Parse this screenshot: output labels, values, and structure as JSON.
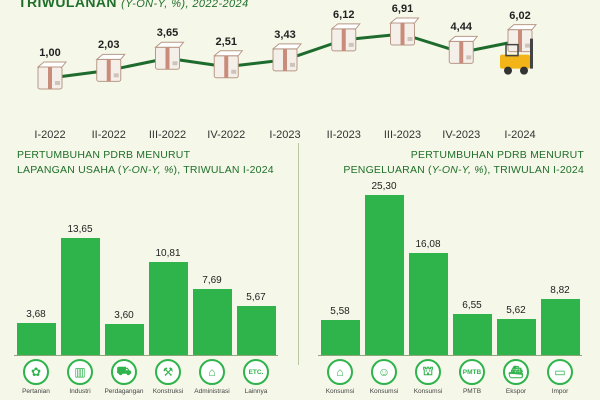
{
  "header": {
    "title_main": "TRIWULANAN",
    "title_sub": "(Y-ON-Y, %), 2022-2024"
  },
  "chart_data": [
    {
      "type": "line",
      "categories": [
        "I-2022",
        "II-2022",
        "III-2022",
        "IV-2022",
        "I-2023",
        "II-2023",
        "III-2023",
        "IV-2023",
        "I-2024"
      ],
      "values": [
        1.0,
        2.03,
        3.65,
        2.51,
        3.43,
        6.12,
        6.91,
        4.44,
        6.02
      ],
      "value_labels": [
        "1,00",
        "2,03",
        "3,65",
        "2,51",
        "3,43",
        "6,12",
        "6,91",
        "4,44",
        "6,02"
      ],
      "color": "#1e6b2e"
    },
    {
      "type": "bar",
      "title_line1": "PERTUMBUHAN PDRB MENURUT",
      "title_line2_pre": "LAPANGAN USAHA (",
      "title_line2_em": "Y-ON-Y, %",
      "title_line2_post": "), TRIWULAN I-2024",
      "categories": [
        "Pertanian",
        "Industri",
        "Perdagangan",
        "Konstruksi",
        "Administrasi",
        "Lainnya"
      ],
      "values": [
        3.68,
        13.65,
        3.6,
        10.81,
        7.69,
        5.67
      ],
      "value_labels": [
        "3,68",
        "13,65",
        "3,60",
        "10,81",
        "7,69",
        "5,67"
      ],
      "icons": [
        "leaf-icon",
        "factory-icon",
        "cart-icon",
        "crane-icon",
        "building-icon",
        "etc-icon"
      ],
      "icon_glyphs": [
        "✿",
        "▥",
        "⛟",
        "⚒",
        "⌂",
        "ETC."
      ],
      "color": "#2fb34b"
    },
    {
      "type": "bar",
      "title_line1": "PERTUMBUHAN PDRB MENURUT",
      "title_line2_pre": "PENGELUARAN (",
      "title_line2_em": "Y-ON-Y, %",
      "title_line2_post": "), TRIWULAN I-2024",
      "categories": [
        "Konsumsi",
        "Konsumsi",
        "Konsumsi",
        "PMTB",
        "Ekspor",
        "Impor"
      ],
      "values": [
        5.58,
        25.3,
        16.08,
        6.55,
        5.62,
        8.82
      ],
      "value_labels": [
        "5,58",
        "25,30",
        "16,08",
        "6,55",
        "5,62",
        "8,82"
      ],
      "icons": [
        "household-icon",
        "person-icon",
        "government-icon",
        "pmtb-icon",
        "ship-icon",
        "container-icon"
      ],
      "icon_glyphs": [
        "⌂",
        "☺",
        "⛫",
        "PMTB",
        "⛴",
        "▭"
      ],
      "color": "#2fb34b"
    }
  ]
}
